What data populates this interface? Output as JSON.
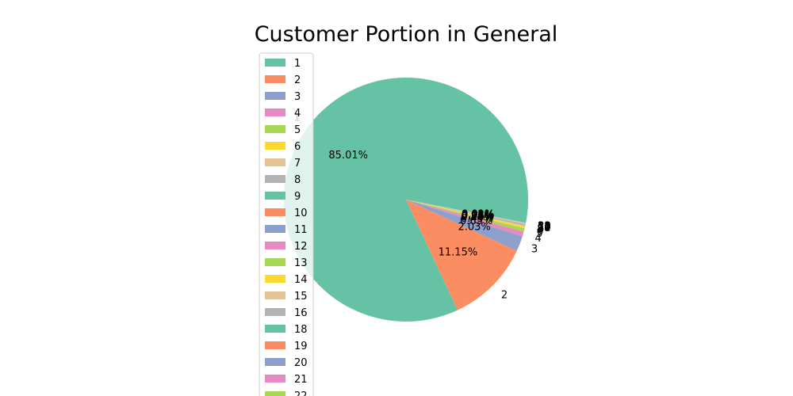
{
  "chart_data": {
    "type": "pie",
    "title": "Customer Portion in General",
    "slices": [
      {
        "label": "1",
        "value": 85.01,
        "pct_label": "85.01%"
      },
      {
        "label": "2",
        "value": 11.15,
        "pct_label": "11.15%"
      },
      {
        "label": "3",
        "value": 2.03,
        "pct_label": "2.03%"
      },
      {
        "label": "4",
        "value": 0.65,
        "pct_label": "0.65%"
      },
      {
        "label": "5",
        "value": 0.45,
        "pct_label": "0.45%"
      },
      {
        "label": "6",
        "value": 0.2,
        "pct_label": "0.20%"
      },
      {
        "label": "7",
        "value": 0.12,
        "pct_label": "0.12%"
      },
      {
        "label": "8",
        "value": 0.08,
        "pct_label": "0.08%"
      },
      {
        "label": "9",
        "value": 0.06,
        "pct_label": "0.06%"
      },
      {
        "label": "10",
        "value": 0.05,
        "pct_label": "0.05%"
      },
      {
        "label": "11",
        "value": 0.04,
        "pct_label": "0.04%"
      },
      {
        "label": "12",
        "value": 0.03,
        "pct_label": "0.03%"
      },
      {
        "label": "13",
        "value": 0.03,
        "pct_label": "0.03%"
      },
      {
        "label": "14",
        "value": 0.02,
        "pct_label": "0.02%"
      },
      {
        "label": "15",
        "value": 0.02,
        "pct_label": "0.02%"
      },
      {
        "label": "16",
        "value": 0.02,
        "pct_label": "0.02%"
      },
      {
        "label": "18",
        "value": 0.01,
        "pct_label": "0.01%"
      },
      {
        "label": "19",
        "value": 0.01,
        "pct_label": "0.01%"
      },
      {
        "label": "20",
        "value": 0.01,
        "pct_label": "0.01%"
      },
      {
        "label": "21",
        "value": 0.01,
        "pct_label": "0.01%"
      },
      {
        "label": "22",
        "value": 0.01,
        "pct_label": "0.01%"
      }
    ],
    "legend_location": "upper-left (overlapping pie)",
    "colors": [
      "#66c2a5",
      "#fc8d62",
      "#8da0cb",
      "#e78ac3",
      "#a6d854",
      "#ffd92f",
      "#e5c494",
      "#b3b3b3"
    ]
  }
}
